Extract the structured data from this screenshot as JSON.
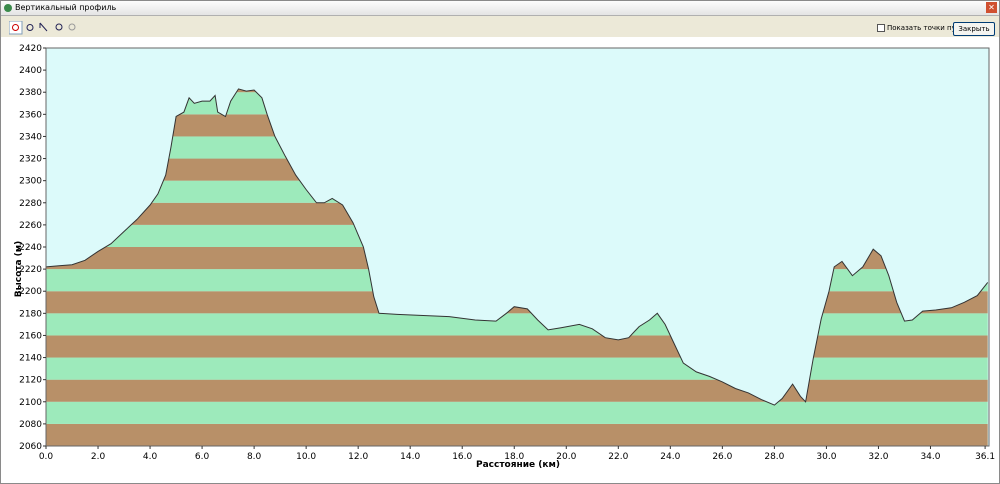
{
  "window": {
    "title": "Вертикальный профиль",
    "show_waypoints": "Показать точки пути",
    "close_button": "Закрыть"
  },
  "chart_data": {
    "type": "area",
    "ylabel": "Высота (м)",
    "xlabel": "Расстояние (км)",
    "x": [
      0,
      0.5,
      1.0,
      1.5,
      2.0,
      2.5,
      3.0,
      3.5,
      4.0,
      4.3,
      4.6,
      4.8,
      5.0,
      5.3,
      5.5,
      5.7,
      6.0,
      6.3,
      6.5,
      6.6,
      6.9,
      7.1,
      7.4,
      7.7,
      8.0,
      8.3,
      8.5,
      8.8,
      9.2,
      9.6,
      10.0,
      10.4,
      10.7,
      11.0,
      11.4,
      11.8,
      12.2,
      12.4,
      12.6,
      12.8,
      13.5,
      14.5,
      15.5,
      16.5,
      17.3,
      17.7,
      18.0,
      18.5,
      18.9,
      19.3,
      19.8,
      20.5,
      21.0,
      21.5,
      22.0,
      22.4,
      22.8,
      23.2,
      23.5,
      23.8,
      24.1,
      24.5,
      25.0,
      25.5,
      26.0,
      26.5,
      27.0,
      27.5,
      28.0,
      28.3,
      28.7,
      29.0,
      29.2,
      29.5,
      29.8,
      30.1,
      30.3,
      30.6,
      31.0,
      31.4,
      31.8,
      32.1,
      32.4,
      32.7,
      33.0,
      33.3,
      33.7,
      34.2,
      34.8,
      35.3,
      35.8,
      36.2
    ],
    "values": [
      2222,
      2223,
      2224,
      2228,
      2236,
      2243,
      2254,
      2265,
      2278,
      2288,
      2305,
      2330,
      2358,
      2362,
      2375,
      2370,
      2372,
      2372,
      2377,
      2362,
      2358,
      2372,
      2383,
      2381,
      2382,
      2375,
      2360,
      2340,
      2322,
      2305,
      2292,
      2280,
      2280,
      2284,
      2278,
      2262,
      2240,
      2220,
      2195,
      2180,
      2179,
      2178,
      2177,
      2174,
      2173,
      2180,
      2186,
      2184,
      2174,
      2165,
      2167,
      2170,
      2166,
      2158,
      2156,
      2158,
      2168,
      2174,
      2180,
      2170,
      2155,
      2135,
      2127,
      2123,
      2118,
      2112,
      2108,
      2102,
      2097,
      2103,
      2116,
      2105,
      2100,
      2140,
      2175,
      2200,
      2222,
      2227,
      2214,
      2222,
      2238,
      2232,
      2214,
      2190,
      2173,
      2174,
      2182,
      2183,
      2185,
      2190,
      2196,
      2208
    ],
    "xlim": [
      0,
      36.25
    ],
    "ylim": [
      2060,
      2420
    ],
    "xticks": [
      {
        "value": 0,
        "label": "0.0"
      },
      {
        "value": 2,
        "label": "2.0"
      },
      {
        "value": 4,
        "label": "4.0"
      },
      {
        "value": 6,
        "label": "6.0"
      },
      {
        "value": 8,
        "label": "8.0"
      },
      {
        "value": 10,
        "label": "10.0"
      },
      {
        "value": 12,
        "label": "12.0"
      },
      {
        "value": 14,
        "label": "14.0"
      },
      {
        "value": 16,
        "label": "16.0"
      },
      {
        "value": 18,
        "label": "18.0"
      },
      {
        "value": 20,
        "label": "20.0"
      },
      {
        "value": 22,
        "label": "22.0"
      },
      {
        "value": 24,
        "label": "24.0"
      },
      {
        "value": 26,
        "label": "26.0"
      },
      {
        "value": 28,
        "label": "28.0"
      },
      {
        "value": 30,
        "label": "30.0"
      },
      {
        "value": 32,
        "label": "32.0"
      },
      {
        "value": 34,
        "label": "34.0"
      },
      36.1
    ],
    "yticks": [
      2060,
      2080,
      2100,
      2120,
      2140,
      2160,
      2180,
      2200,
      2220,
      2240,
      2260,
      2280,
      2300,
      2320,
      2340,
      2360,
      2380,
      2400,
      2420
    ],
    "band_colors": [
      "#b89068",
      "#9deabb"
    ],
    "plot_background": "#dcfafa",
    "line_color": "#333333"
  }
}
